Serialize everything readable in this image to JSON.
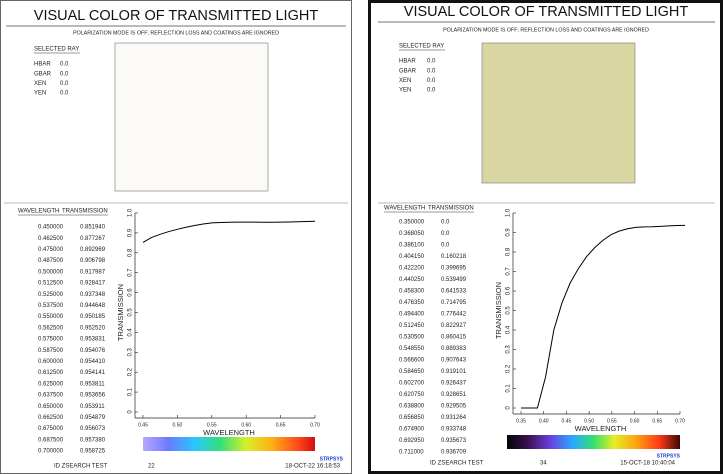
{
  "panels": [
    {
      "title": "VISUAL COLOR OF TRANSMITTED LIGHT",
      "subtitle": "POLARIZATION MODE IS OFF; REFLECTION LOSS AND COATINGS ARE IGNORED",
      "selected_ray": {
        "heading": "SELECTED RAY",
        "fields": [
          {
            "label": "HBAR",
            "value": "0.0"
          },
          {
            "label": "GBAR",
            "value": "0.0"
          },
          {
            "label": "XEN",
            "value": "0.0"
          },
          {
            "label": "YEN",
            "value": "0.0"
          }
        ]
      },
      "swatch_color": "#fbfaf6",
      "table": {
        "header": [
          "WAVELENGTH",
          "TRANSMISSION"
        ],
        "rows": [
          [
            "0.450000",
            "0.851940"
          ],
          [
            "0.462500",
            "0.877267"
          ],
          [
            "0.475000",
            "0.892969"
          ],
          [
            "0.487500",
            "0.906798"
          ],
          [
            "0.500000",
            "0.917987"
          ],
          [
            "0.512500",
            "0.928417"
          ],
          [
            "0.525000",
            "0.937348"
          ],
          [
            "0.537500",
            "0.944648"
          ],
          [
            "0.550000",
            "0.950185"
          ],
          [
            "0.562500",
            "0.952520"
          ],
          [
            "0.575000",
            "0.953831"
          ],
          [
            "0.587500",
            "0.954076"
          ],
          [
            "0.600000",
            "0.954410"
          ],
          [
            "0.612500",
            "0.954141"
          ],
          [
            "0.625000",
            "0.953811"
          ],
          [
            "0.637500",
            "0.953656"
          ],
          [
            "0.650000",
            "0.953911"
          ],
          [
            "0.662500",
            "0.954879"
          ],
          [
            "0.675000",
            "0.956073"
          ],
          [
            "0.687500",
            "0.957380"
          ],
          [
            "0.700000",
            "0.958725"
          ]
        ]
      },
      "logo": "STRPSYS",
      "footer": {
        "id": "ID ZSEARCH TEST",
        "page": "22",
        "date": "18-OCT-22  16:18:53"
      }
    },
    {
      "title": "VISUAL COLOR OF TRANSMITTED LIGHT",
      "subtitle": "POLARIZATION MODE IS OFF; REFLECTION LOSS AND COATINGS ARE IGNORED",
      "selected_ray": {
        "heading": "SELECTED RAY",
        "fields": [
          {
            "label": "HBAR",
            "value": "0.0"
          },
          {
            "label": "GBAR",
            "value": "0.0"
          },
          {
            "label": "XEN",
            "value": "0.0"
          },
          {
            "label": "YEN",
            "value": "0.0"
          }
        ]
      },
      "swatch_color": "#d9d6a1",
      "table": {
        "header": [
          "WAVELENGTH",
          "TRANSMISSION"
        ],
        "rows": [
          [
            "0.350000",
            "0.0"
          ],
          [
            "0.368050",
            "0.0"
          ],
          [
            "0.386100",
            "0.0"
          ],
          [
            "0.404150",
            "0.160218"
          ],
          [
            "0.422200",
            "0.399695"
          ],
          [
            "0.440250",
            "0.539499"
          ],
          [
            "0.458300",
            "0.641533"
          ],
          [
            "0.476350",
            "0.714795"
          ],
          [
            "0.494400",
            "0.776442"
          ],
          [
            "0.512450",
            "0.822927"
          ],
          [
            "0.530500",
            "0.860415"
          ],
          [
            "0.548550",
            "0.889383"
          ],
          [
            "0.566600",
            "0.907643"
          ],
          [
            "0.584650",
            "0.919101"
          ],
          [
            "0.602700",
            "0.926437"
          ],
          [
            "0.620750",
            "0.928651"
          ],
          [
            "0.638800",
            "0.929505"
          ],
          [
            "0.656850",
            "0.931264"
          ],
          [
            "0.674900",
            "0.933748"
          ],
          [
            "0.692950",
            "0.935673"
          ],
          [
            "0.711000",
            "0.936709"
          ]
        ]
      },
      "logo": "STRPSYS",
      "footer": {
        "id": "ID ZSEARCH TEST",
        "page": "34",
        "date": "15-OCT-18  10:40:04"
      }
    }
  ],
  "chart_data": [
    {
      "type": "line",
      "x_label": "WAVELENGTH",
      "y_label": "TRANSMISSION",
      "color": "#000000",
      "x": [
        0.45,
        0.4625,
        0.475,
        0.4875,
        0.5,
        0.5125,
        0.525,
        0.5375,
        0.55,
        0.5625,
        0.575,
        0.5875,
        0.6,
        0.6125,
        0.625,
        0.6375,
        0.65,
        0.6625,
        0.675,
        0.6875,
        0.7
      ],
      "values": [
        0.85194,
        0.877267,
        0.892969,
        0.906798,
        0.917987,
        0.928417,
        0.937348,
        0.944648,
        0.950185,
        0.95252,
        0.953831,
        0.954076,
        0.95441,
        0.954141,
        0.953811,
        0.953656,
        0.953911,
        0.954879,
        0.956073,
        0.95738,
        0.958725
      ],
      "xlim": [
        0.45,
        0.7
      ],
      "xticks": [
        0.45,
        {
          "value": 0.5,
          "label": "0.50"
        },
        0.55,
        {
          "value": 0.6,
          "label": "0.60"
        },
        0.65,
        {
          "value": 0.7,
          "label": "0.70"
        }
      ],
      "ylim": [
        0,
        1
      ],
      "yticks": [
        0,
        0.1,
        0.2,
        0.3,
        0.4,
        0.5,
        0.6,
        0.7,
        0.8,
        0.9,
        {
          "value": 1,
          "label": "1.0"
        }
      ]
    },
    {
      "type": "line",
      "x_label": "WAVELENGTH",
      "y_label": "TRANSMISSION",
      "color": "#000000",
      "x": [
        0.35,
        0.36805,
        0.3861,
        0.40415,
        0.4222,
        0.44025,
        0.4583,
        0.47635,
        0.4944,
        0.51245,
        0.5305,
        0.54855,
        0.5666,
        0.58465,
        0.6027,
        0.62075,
        0.6388,
        0.65685,
        0.6749,
        0.69295,
        0.711
      ],
      "values": [
        0,
        0,
        0,
        0.160218,
        0.399695,
        0.539499,
        0.641533,
        0.714795,
        0.776442,
        0.822927,
        0.860415,
        0.889383,
        0.907643,
        0.919101,
        0.926437,
        0.928651,
        0.929505,
        0.931264,
        0.933748,
        0.935673,
        0.936709
      ],
      "xlim": [
        0.35,
        0.7
      ],
      "xticks": [
        0.35,
        {
          "value": 0.4,
          "label": "0.40"
        },
        0.45,
        {
          "value": 0.5,
          "label": "0.50"
        },
        0.55,
        {
          "value": 0.6,
          "label": "0.60"
        },
        0.65,
        {
          "value": 0.7,
          "label": "0.70"
        }
      ],
      "ylim": [
        0,
        1
      ],
      "yticks": [
        0,
        0.1,
        0.2,
        0.3,
        0.4,
        0.5,
        0.6,
        0.7,
        0.8,
        0.9,
        {
          "value": 1,
          "label": "1.0"
        }
      ]
    }
  ]
}
